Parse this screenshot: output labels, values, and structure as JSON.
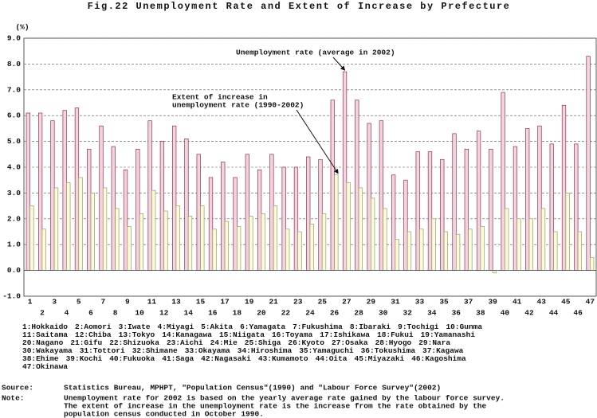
{
  "chart_data": {
    "type": "bar",
    "title": "Fig.22 Unemployment Rate and Extent of Increase by Prefecture",
    "y_label": "(%)",
    "categories": [
      "1",
      "2",
      "3",
      "4",
      "5",
      "6",
      "7",
      "8",
      "9",
      "10",
      "11",
      "12",
      "13",
      "14",
      "15",
      "16",
      "17",
      "18",
      "19",
      "20",
      "21",
      "22",
      "23",
      "24",
      "25",
      "26",
      "27",
      "28",
      "29",
      "30",
      "31",
      "32",
      "33",
      "34",
      "35",
      "36",
      "37",
      "38",
      "39",
      "40",
      "41",
      "42",
      "43",
      "44",
      "45",
      "46",
      "47"
    ],
    "series": [
      {
        "name": [
          "Unemployment rate (average in 2002)"
        ],
        "color": "#f2d3de",
        "stroke": "#8a3552",
        "values": [
          6.1,
          6.1,
          5.8,
          6.2,
          6.3,
          4.7,
          5.6,
          4.8,
          3.9,
          4.7,
          5.8,
          5.0,
          5.6,
          5.1,
          4.5,
          3.6,
          4.2,
          3.6,
          4.5,
          3.9,
          4.5,
          4.0,
          4.0,
          4.4,
          4.3,
          6.6,
          7.7,
          6.6,
          5.7,
          5.8,
          3.7,
          3.5,
          4.6,
          4.6,
          4.3,
          5.3,
          4.7,
          5.4,
          4.7,
          6.9,
          4.8,
          5.5,
          5.6,
          4.9,
          6.4,
          4.9,
          8.3
        ]
      },
      {
        "name": [
          "Extent of increase in",
          "unemployment rate (1990-2002)"
        ],
        "color": "#fbfbdc",
        "stroke": "#9a9a6a",
        "values": [
          2.5,
          1.6,
          3.2,
          3.4,
          3.6,
          3.0,
          3.2,
          2.4,
          1.7,
          2.2,
          3.1,
          2.3,
          2.5,
          2.1,
          2.5,
          1.6,
          1.9,
          1.7,
          2.1,
          2.2,
          2.5,
          1.6,
          1.5,
          1.8,
          2.2,
          3.7,
          3.4,
          3.2,
          2.8,
          2.4,
          1.2,
          1.5,
          1.6,
          2.0,
          1.5,
          1.4,
          1.6,
          1.7,
          -0.1,
          2.4,
          2.0,
          2.0,
          2.4,
          1.5,
          3.0,
          1.5,
          0.5
        ]
      }
    ],
    "ylim": [
      -1,
      9
    ],
    "yticks": [
      {
        "value": -1,
        "label": "-1.0"
      },
      {
        "value": 0,
        "label": "0.0"
      },
      {
        "value": 1,
        "label": "1.0"
      },
      {
        "value": 2,
        "label": "2.0"
      },
      {
        "value": 3,
        "label": "3.0"
      },
      {
        "value": 4,
        "label": "4.0"
      },
      {
        "value": 5,
        "label": "5.0"
      },
      {
        "value": 6,
        "label": "6.0"
      },
      {
        "value": 7,
        "label": "7.0"
      },
      {
        "value": 8,
        "label": "8.0"
      },
      {
        "value": 9,
        "label": "9.0"
      }
    ],
    "grid": true
  },
  "prefecture_key": [
    [
      "1:Hokkaido",
      "2:Aomori",
      "3:Iwate",
      "4:Miyagi",
      "5:Akita",
      "6:Yamagata",
      "7:Fukushima",
      "8:Ibaraki",
      "9:Tochigi",
      "10:Gunma"
    ],
    [
      "11:Saitama",
      "12:Chiba",
      "13:Tokyo",
      "14:Kanagawa",
      "15:Niigata",
      "16:Toyama",
      "17:Ishikawa",
      "18:Fukui",
      "19:Yamanashi"
    ],
    [
      "20:Nagano",
      "21:Gifu",
      "22:Shizuoka",
      "23:Aichi",
      "24:Mie",
      "25:Shiga",
      "26:Kyoto",
      "27:Osaka",
      "28:Hyogo",
      "29:Nara"
    ],
    [
      "30:Wakayama",
      "31:Tottori",
      "32:Shimane",
      "33:Okayama",
      "34:Hiroshima",
      "35:Yamaguchi",
      "36:Tokushima",
      "37:Kagawa"
    ],
    [
      "38:Ehime",
      "39:Kochi",
      "40:Fukuoka",
      "41:Saga",
      "42:Nagasaki",
      "43:Kumamoto",
      "44:Oita",
      "45:Miyazaki",
      "46:Kagoshima"
    ],
    [
      "47:Okinawa"
    ]
  ],
  "source": {
    "label": "Source:",
    "text": "Statistics Bureau, MPHPT, \"Population Census\"(1990) and \"Labour Force Survey\"(2002)"
  },
  "note": {
    "label": "Note:",
    "lines": [
      "Unemployment rate for 2002 is based on the yearly average rate gained by the labour force survey.",
      "The extent of increase in the unemployment rate is the increase from the rate obtained by the",
      "population census conducted in October 1990."
    ]
  }
}
